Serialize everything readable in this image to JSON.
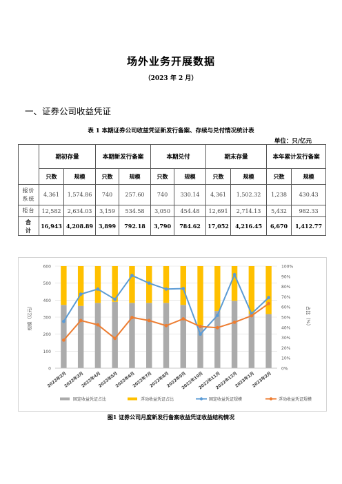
{
  "doc": {
    "title": "场外业务开展数据",
    "subtitle": "（2023 年 2 月）",
    "section": "一、证券公司收益凭证",
    "table_caption": "表 1 本期证券公司收益凭证新发行备案、存续与兑付情况统计表",
    "unit": "单位：只/亿元",
    "figure_caption": "图1 证券公司月度新发行备案收益凭证收益结构情况"
  },
  "table": {
    "groups": [
      "期初存量",
      "本期新发行备案",
      "本期兑付",
      "期末存量",
      "本年累计发行备案"
    ],
    "subheaders": [
      "只数",
      "规模",
      "只数",
      "规模",
      "只数",
      "规模",
      "只数",
      "规模",
      "只数",
      "规模"
    ],
    "rows": [
      {
        "label": "报价\n系统",
        "cells": [
          "4,361",
          "1,574.86",
          "740",
          "257.60",
          "740",
          "330.14",
          "4,361",
          "1,502.32",
          "1,238",
          "430.43"
        ]
      },
      {
        "label": "柜台",
        "cells": [
          "12,582",
          "2,634.03",
          "3,159",
          "534.58",
          "3,050",
          "454.48",
          "12,691",
          "2,714.13",
          "5,432",
          "982.33"
        ]
      },
      {
        "label": "合\n计",
        "cells": [
          "16,943",
          "4,208.89",
          "3,899",
          "792.18",
          "3,790",
          "784.62",
          "17,052",
          "4,216.45",
          "6,670",
          "1,412.77"
        ]
      }
    ]
  },
  "chart_data": {
    "type": "bar",
    "categories": [
      "2022年2月",
      "2022年3月",
      "2022年4月",
      "2022年5月",
      "2022年6月",
      "2022年7月",
      "2022年8月",
      "2022年9月",
      "2022年10月",
      "2022年11月",
      "2022年12月",
      "2023年1月",
      "2023年2月"
    ],
    "ylabel": "规模（亿元）",
    "y2label": "占比（%）",
    "ylim": [
      0,
      600
    ],
    "yticks": [
      "0",
      "100",
      "200",
      "300",
      "400",
      "500",
      "600"
    ],
    "y2lim": [
      0,
      100
    ],
    "y2ticks": [
      "0%",
      "10%",
      "20%",
      "30%",
      "40%",
      "50%",
      "60%",
      "70%",
      "80%",
      "90%",
      "100%"
    ],
    "grid": true,
    "legend_position": "bottom",
    "series": [
      {
        "name": "固定收益凭证占比",
        "kind": "bar",
        "axis": "right",
        "color": "#ababab",
        "values": [
          62,
          61,
          64,
          65,
          64,
          64,
          64,
          62,
          42,
          56,
          66,
          53,
          53
        ]
      },
      {
        "name": "浮动收益凭证占比",
        "kind": "bar",
        "axis": "right",
        "color": "#ffc000",
        "values": [
          38,
          39,
          36,
          35,
          36,
          36,
          36,
          38,
          58,
          44,
          34,
          47,
          47
        ]
      },
      {
        "name": "固定收益凭证规模",
        "kind": "line",
        "axis": "left",
        "color": "#5b9bd5",
        "values": [
          275,
          435,
          465,
          405,
          545,
          500,
          465,
          468,
          200,
          310,
          550,
          320,
          415
        ]
      },
      {
        "name": "浮动收益凭证规模",
        "kind": "line",
        "axis": "left",
        "color": "#ed7d31",
        "values": [
          165,
          280,
          255,
          175,
          298,
          280,
          250,
          290,
          245,
          238,
          270,
          308,
          380
        ]
      }
    ]
  }
}
